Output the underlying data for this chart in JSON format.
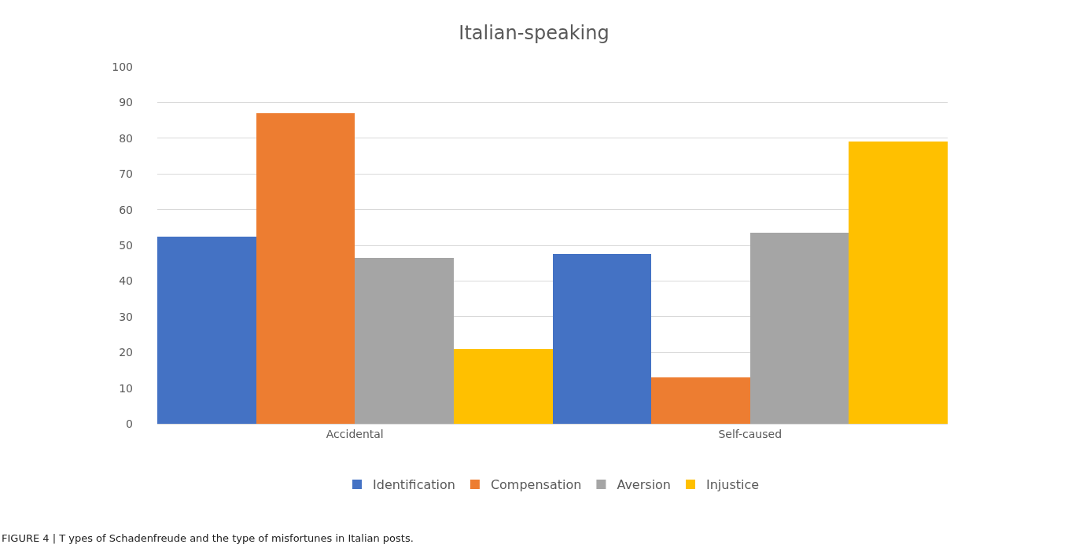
{
  "chart_data": {
    "type": "bar",
    "title": "Italian-speaking",
    "categories": [
      "Accidental",
      "Self-caused"
    ],
    "series": [
      {
        "name": "Identification",
        "color": "#4472c4",
        "values": [
          52.5,
          47.5
        ]
      },
      {
        "name": "Compensation",
        "color": "#ed7d31",
        "values": [
          87,
          13
        ]
      },
      {
        "name": "Aversion",
        "color": "#a5a5a5",
        "values": [
          46.5,
          53.5
        ]
      },
      {
        "name": "Injustice",
        "color": "#ffc000",
        "values": [
          21,
          79
        ]
      }
    ],
    "ylim": [
      0,
      100
    ],
    "yticks": [
      0,
      10,
      20,
      30,
      40,
      50,
      60,
      70,
      80,
      90,
      100
    ],
    "grid": "y",
    "legend": "bottom",
    "annotations": [
      "FIGURE 4 | T ypes of Schadenfreude and the type of misfortunes in Italian posts."
    ]
  }
}
